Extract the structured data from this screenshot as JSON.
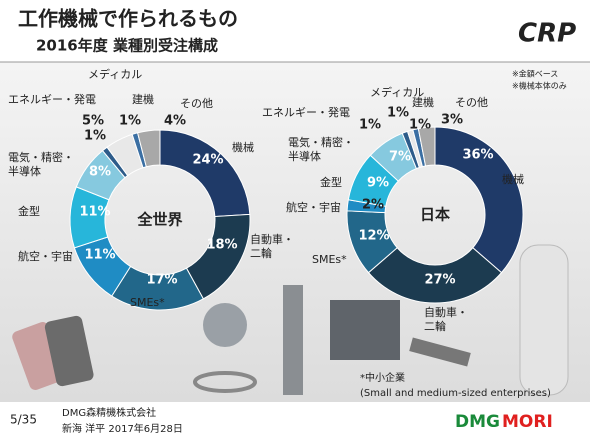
{
  "header": {
    "title": "工作機械で作られるもの",
    "subtitle": "2016年度 業種別受注構成",
    "logo": "CRP"
  },
  "notes": [
    "※金額ベース",
    "※機械本体のみ"
  ],
  "chart_data": [
    {
      "type": "donut",
      "title": "全世界",
      "categories": [
        [
          "機械"
        ],
        [
          "自動車・",
          "二輪"
        ],
        [
          "SMEs*"
        ],
        [
          "航空・宇宙"
        ],
        [
          "金型"
        ],
        [
          "電気・精密・",
          "半導体"
        ],
        [
          "エネルギー・発電"
        ],
        [
          "メディカル"
        ],
        [
          "建機"
        ],
        [
          "その他"
        ]
      ],
      "values": [
        24,
        18,
        17,
        11,
        11,
        8,
        1,
        5,
        1,
        4
      ],
      "value_labels": [
        "24%",
        "18%",
        "17%",
        "11%",
        "11%",
        "8%",
        "1%",
        "5%",
        "1%",
        "4%"
      ],
      "colors": [
        "#1f3a68",
        "#1c3b50",
        "#22678a",
        "#1f8cc4",
        "#27b6da",
        "#86c9df",
        "#2d5c8a",
        "#e8e8e8",
        "#3b6fa3",
        "#a8a8a8"
      ]
    },
    {
      "type": "donut",
      "title": "日本",
      "categories": [
        [
          "機械"
        ],
        [
          "自動車・",
          "二輪"
        ],
        [
          "SMEs*"
        ],
        [
          "航空・宇宙"
        ],
        [
          "金型"
        ],
        [
          "電気・精密・",
          "半導体"
        ],
        [
          "エネルギー・発電"
        ],
        [
          "メディカル"
        ],
        [
          "建機"
        ],
        [
          "その他"
        ]
      ],
      "values": [
        36,
        27,
        12,
        2,
        9,
        7,
        1,
        1,
        1,
        3
      ],
      "value_labels": [
        "36%",
        "27%",
        "12%",
        "2%",
        "9%",
        "7%",
        "1%",
        "1%",
        "1%",
        "3%"
      ],
      "colors": [
        "#1f3a68",
        "#1c3b50",
        "#22678a",
        "#1f8cc4",
        "#27b6da",
        "#86c9df",
        "#2d5c8a",
        "#e8e8e8",
        "#3b6fa3",
        "#a8a8a8"
      ]
    }
  ],
  "footnote": [
    "*中小企業",
    "(Small and medium-sized enterprises)"
  ],
  "footer": {
    "page": "5/35",
    "company": "DMG森精機株式会社",
    "author_date": "新海 洋平 2017年6月28日",
    "brand_1": "DMG",
    "brand_2": "MORI"
  }
}
